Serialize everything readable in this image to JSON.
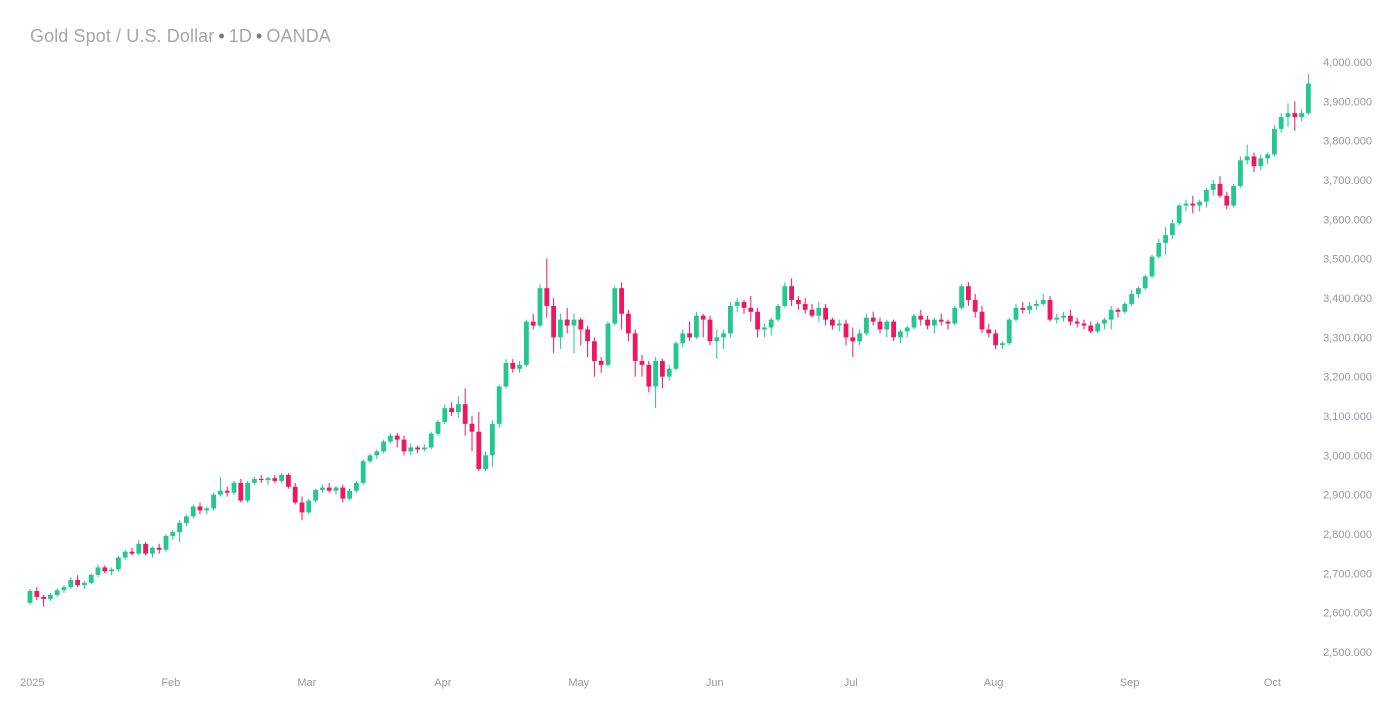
{
  "header": {
    "symbol": "Gold Spot / U.S. Dollar",
    "interval": "1D",
    "source": "OANDA",
    "separator": "•"
  },
  "colors": {
    "up": "#22c88f",
    "down": "#f0165f",
    "axis_text": "#9598a1",
    "title_text": "#a3a6af"
  },
  "chart_data": {
    "type": "candlestick",
    "title": "Gold Spot / U.S. Dollar • 1D • OANDA",
    "ylim": [
      2475,
      4010
    ],
    "y_ticks": [
      {
        "value": 4000,
        "label": "4,000.000"
      },
      {
        "value": 3900,
        "label": "3,900.000"
      },
      {
        "value": 3800,
        "label": "3,800.000"
      },
      {
        "value": 3700,
        "label": "3,700.000"
      },
      {
        "value": 3600,
        "label": "3,600.000"
      },
      {
        "value": 3500,
        "label": "3,500.000"
      },
      {
        "value": 3400,
        "label": "3,400.000"
      },
      {
        "value": 3300,
        "label": "3,300.000"
      },
      {
        "value": 3200,
        "label": "3,200.000"
      },
      {
        "value": 3100,
        "label": "3,100.000"
      },
      {
        "value": 3000,
        "label": "3,000.000"
      },
      {
        "value": 2900,
        "label": "2,900.000"
      },
      {
        "value": 2800,
        "label": "2,800.000"
      },
      {
        "value": 2700,
        "label": "2,700.000"
      },
      {
        "value": 2600,
        "label": "2,600.000"
      },
      {
        "value": 2500,
        "label": "2,500.000"
      }
    ],
    "x_ticks": [
      {
        "index": 0,
        "label": "2025"
      },
      {
        "index": 21,
        "label": "Feb"
      },
      {
        "index": 41,
        "label": "Mar"
      },
      {
        "index": 61,
        "label": "Apr"
      },
      {
        "index": 81,
        "label": "May"
      },
      {
        "index": 101,
        "label": "Jun"
      },
      {
        "index": 121,
        "label": "Jul"
      },
      {
        "index": 142,
        "label": "Aug"
      },
      {
        "index": 162,
        "label": "Sep"
      },
      {
        "index": 183,
        "label": "Oct"
      }
    ],
    "candles": [
      [
        2625,
        2660,
        2620,
        2655
      ],
      [
        2655,
        2665,
        2632,
        2640
      ],
      [
        2640,
        2645,
        2615,
        2635
      ],
      [
        2635,
        2650,
        2630,
        2645
      ],
      [
        2645,
        2662,
        2640,
        2657
      ],
      [
        2657,
        2670,
        2650,
        2665
      ],
      [
        2665,
        2690,
        2660,
        2683
      ],
      [
        2683,
        2695,
        2665,
        2670
      ],
      [
        2670,
        2680,
        2660,
        2676
      ],
      [
        2676,
        2700,
        2672,
        2696
      ],
      [
        2696,
        2722,
        2690,
        2715
      ],
      [
        2715,
        2720,
        2700,
        2705
      ],
      [
        2705,
        2715,
        2695,
        2710
      ],
      [
        2710,
        2745,
        2705,
        2740
      ],
      [
        2740,
        2760,
        2735,
        2755
      ],
      [
        2755,
        2765,
        2745,
        2750
      ],
      [
        2750,
        2785,
        2745,
        2775
      ],
      [
        2775,
        2780,
        2745,
        2750
      ],
      [
        2750,
        2768,
        2740,
        2765
      ],
      [
        2765,
        2775,
        2750,
        2760
      ],
      [
        2760,
        2800,
        2755,
        2795
      ],
      [
        2795,
        2810,
        2785,
        2805
      ],
      [
        2805,
        2835,
        2780,
        2828
      ],
      [
        2828,
        2850,
        2820,
        2845
      ],
      [
        2845,
        2875,
        2840,
        2870
      ],
      [
        2870,
        2880,
        2850,
        2860
      ],
      [
        2860,
        2870,
        2850,
        2865
      ],
      [
        2865,
        2905,
        2860,
        2900
      ],
      [
        2900,
        2945,
        2895,
        2910
      ],
      [
        2910,
        2920,
        2895,
        2905
      ],
      [
        2905,
        2935,
        2900,
        2930
      ],
      [
        2930,
        2940,
        2880,
        2885
      ],
      [
        2885,
        2935,
        2880,
        2930
      ],
      [
        2930,
        2945,
        2925,
        2940
      ],
      [
        2940,
        2950,
        2930,
        2937
      ],
      [
        2937,
        2945,
        2925,
        2942
      ],
      [
        2942,
        2950,
        2930,
        2935
      ],
      [
        2935,
        2955,
        2930,
        2950
      ],
      [
        2950,
        2955,
        2915,
        2920
      ],
      [
        2920,
        2930,
        2875,
        2880
      ],
      [
        2880,
        2895,
        2835,
        2855
      ],
      [
        2855,
        2890,
        2850,
        2885
      ],
      [
        2885,
        2915,
        2880,
        2912
      ],
      [
        2912,
        2925,
        2905,
        2918
      ],
      [
        2918,
        2930,
        2905,
        2910
      ],
      [
        2910,
        2922,
        2900,
        2918
      ],
      [
        2918,
        2925,
        2880,
        2890
      ],
      [
        2890,
        2915,
        2885,
        2910
      ],
      [
        2910,
        2935,
        2905,
        2930
      ],
      [
        2930,
        2990,
        2925,
        2985
      ],
      [
        2985,
        3005,
        2980,
        3000
      ],
      [
        3000,
        3015,
        2990,
        3010
      ],
      [
        3010,
        3040,
        3005,
        3035
      ],
      [
        3035,
        3055,
        3030,
        3050
      ],
      [
        3050,
        3057,
        3020,
        3040
      ],
      [
        3040,
        3050,
        3000,
        3010
      ],
      [
        3010,
        3030,
        3000,
        3020
      ],
      [
        3020,
        3025,
        3005,
        3015
      ],
      [
        3015,
        3028,
        3010,
        3020
      ],
      [
        3020,
        3060,
        3015,
        3055
      ],
      [
        3055,
        3090,
        3050,
        3085
      ],
      [
        3085,
        3130,
        3080,
        3120
      ],
      [
        3120,
        3135,
        3100,
        3110
      ],
      [
        3110,
        3150,
        3095,
        3130
      ],
      [
        3130,
        3170,
        3050,
        3080
      ],
      [
        3080,
        3100,
        3010,
        3060
      ],
      [
        3060,
        3110,
        2960,
        2965
      ],
      [
        2965,
        3010,
        2960,
        3000
      ],
      [
        3000,
        3090,
        2970,
        3080
      ],
      [
        3080,
        3180,
        3070,
        3175
      ],
      [
        3175,
        3245,
        3170,
        3235
      ],
      [
        3235,
        3245,
        3210,
        3220
      ],
      [
        3220,
        3240,
        3210,
        3230
      ],
      [
        3230,
        3345,
        3225,
        3340
      ],
      [
        3340,
        3360,
        3320,
        3330
      ],
      [
        3330,
        3435,
        3325,
        3425
      ],
      [
        3425,
        3500,
        3350,
        3380
      ],
      [
        3380,
        3400,
        3260,
        3300
      ],
      [
        3300,
        3360,
        3270,
        3345
      ],
      [
        3345,
        3375,
        3310,
        3330
      ],
      [
        3330,
        3360,
        3260,
        3345
      ],
      [
        3345,
        3350,
        3280,
        3320
      ],
      [
        3320,
        3330,
        3250,
        3290
      ],
      [
        3290,
        3300,
        3200,
        3240
      ],
      [
        3240,
        3250,
        3210,
        3230
      ],
      [
        3230,
        3340,
        3225,
        3335
      ],
      [
        3335,
        3430,
        3330,
        3425
      ],
      [
        3425,
        3440,
        3320,
        3360
      ],
      [
        3360,
        3370,
        3290,
        3310
      ],
      [
        3310,
        3320,
        3200,
        3240
      ],
      [
        3240,
        3255,
        3200,
        3230
      ],
      [
        3230,
        3240,
        3160,
        3175
      ],
      [
        3175,
        3250,
        3120,
        3240
      ],
      [
        3240,
        3245,
        3170,
        3200
      ],
      [
        3200,
        3230,
        3190,
        3220
      ],
      [
        3220,
        3290,
        3215,
        3285
      ],
      [
        3285,
        3320,
        3275,
        3310
      ],
      [
        3310,
        3340,
        3290,
        3300
      ],
      [
        3300,
        3365,
        3295,
        3355
      ],
      [
        3355,
        3360,
        3300,
        3345
      ],
      [
        3345,
        3355,
        3280,
        3290
      ],
      [
        3290,
        3320,
        3245,
        3300
      ],
      [
        3300,
        3320,
        3270,
        3310
      ],
      [
        3310,
        3390,
        3300,
        3380
      ],
      [
        3380,
        3400,
        3365,
        3390
      ],
      [
        3390,
        3395,
        3360,
        3375
      ],
      [
        3375,
        3405,
        3340,
        3365
      ],
      [
        3365,
        3375,
        3300,
        3320
      ],
      [
        3320,
        3335,
        3300,
        3325
      ],
      [
        3325,
        3350,
        3305,
        3345
      ],
      [
        3345,
        3385,
        3340,
        3380
      ],
      [
        3380,
        3440,
        3375,
        3430
      ],
      [
        3430,
        3450,
        3380,
        3395
      ],
      [
        3395,
        3405,
        3370,
        3385
      ],
      [
        3385,
        3400,
        3360,
        3370
      ],
      [
        3370,
        3385,
        3350,
        3355
      ],
      [
        3355,
        3390,
        3340,
        3375
      ],
      [
        3375,
        3385,
        3330,
        3345
      ],
      [
        3345,
        3350,
        3320,
        3330
      ],
      [
        3330,
        3345,
        3315,
        3335
      ],
      [
        3335,
        3345,
        3280,
        3300
      ],
      [
        3300,
        3325,
        3250,
        3290
      ],
      [
        3290,
        3320,
        3280,
        3310
      ],
      [
        3310,
        3360,
        3305,
        3350
      ],
      [
        3350,
        3365,
        3330,
        3340
      ],
      [
        3340,
        3350,
        3310,
        3320
      ],
      [
        3320,
        3345,
        3300,
        3340
      ],
      [
        3340,
        3345,
        3290,
        3300
      ],
      [
        3300,
        3320,
        3285,
        3315
      ],
      [
        3315,
        3330,
        3300,
        3325
      ],
      [
        3325,
        3360,
        3320,
        3355
      ],
      [
        3355,
        3370,
        3330,
        3345
      ],
      [
        3345,
        3355,
        3320,
        3330
      ],
      [
        3330,
        3350,
        3310,
        3345
      ],
      [
        3345,
        3360,
        3330,
        3340
      ],
      [
        3340,
        3345,
        3320,
        3335
      ],
      [
        3335,
        3380,
        3330,
        3375
      ],
      [
        3375,
        3435,
        3370,
        3430
      ],
      [
        3430,
        3440,
        3380,
        3395
      ],
      [
        3395,
        3410,
        3350,
        3365
      ],
      [
        3365,
        3380,
        3310,
        3320
      ],
      [
        3320,
        3335,
        3300,
        3310
      ],
      [
        3310,
        3320,
        3270,
        3280
      ],
      [
        3280,
        3290,
        3270,
        3285
      ],
      [
        3285,
        3350,
        3280,
        3345
      ],
      [
        3345,
        3385,
        3340,
        3375
      ],
      [
        3375,
        3390,
        3360,
        3370
      ],
      [
        3370,
        3390,
        3360,
        3380
      ],
      [
        3380,
        3395,
        3370,
        3385
      ],
      [
        3385,
        3410,
        3380,
        3395
      ],
      [
        3395,
        3405,
        3340,
        3345
      ],
      [
        3345,
        3360,
        3335,
        3350
      ],
      [
        3350,
        3365,
        3340,
        3355
      ],
      [
        3355,
        3370,
        3330,
        3340
      ],
      [
        3340,
        3350,
        3325,
        3335
      ],
      [
        3335,
        3345,
        3320,
        3330
      ],
      [
        3330,
        3340,
        3310,
        3315
      ],
      [
        3315,
        3340,
        3310,
        3335
      ],
      [
        3335,
        3350,
        3320,
        3345
      ],
      [
        3345,
        3380,
        3320,
        3370
      ],
      [
        3370,
        3375,
        3350,
        3365
      ],
      [
        3365,
        3390,
        3360,
        3385
      ],
      [
        3385,
        3420,
        3380,
        3410
      ],
      [
        3410,
        3430,
        3400,
        3425
      ],
      [
        3425,
        3460,
        3420,
        3455
      ],
      [
        3455,
        3510,
        3450,
        3505
      ],
      [
        3505,
        3550,
        3500,
        3540
      ],
      [
        3540,
        3580,
        3510,
        3560
      ],
      [
        3560,
        3600,
        3550,
        3590
      ],
      [
        3590,
        3640,
        3585,
        3635
      ],
      [
        3635,
        3650,
        3620,
        3640
      ],
      [
        3640,
        3660,
        3615,
        3635
      ],
      [
        3635,
        3650,
        3620,
        3645
      ],
      [
        3645,
        3680,
        3630,
        3675
      ],
      [
        3675,
        3700,
        3660,
        3690
      ],
      [
        3690,
        3710,
        3655,
        3660
      ],
      [
        3660,
        3670,
        3625,
        3635
      ],
      [
        3635,
        3690,
        3630,
        3685
      ],
      [
        3685,
        3760,
        3680,
        3750
      ],
      [
        3750,
        3790,
        3740,
        3760
      ],
      [
        3760,
        3770,
        3720,
        3735
      ],
      [
        3735,
        3765,
        3725,
        3755
      ],
      [
        3755,
        3770,
        3740,
        3765
      ],
      [
        3765,
        3840,
        3760,
        3830
      ],
      [
        3830,
        3870,
        3820,
        3860
      ],
      [
        3860,
        3895,
        3835,
        3870
      ],
      [
        3870,
        3900,
        3825,
        3860
      ],
      [
        3860,
        3880,
        3850,
        3870
      ],
      [
        3870,
        3970,
        3865,
        3945
      ]
    ]
  }
}
